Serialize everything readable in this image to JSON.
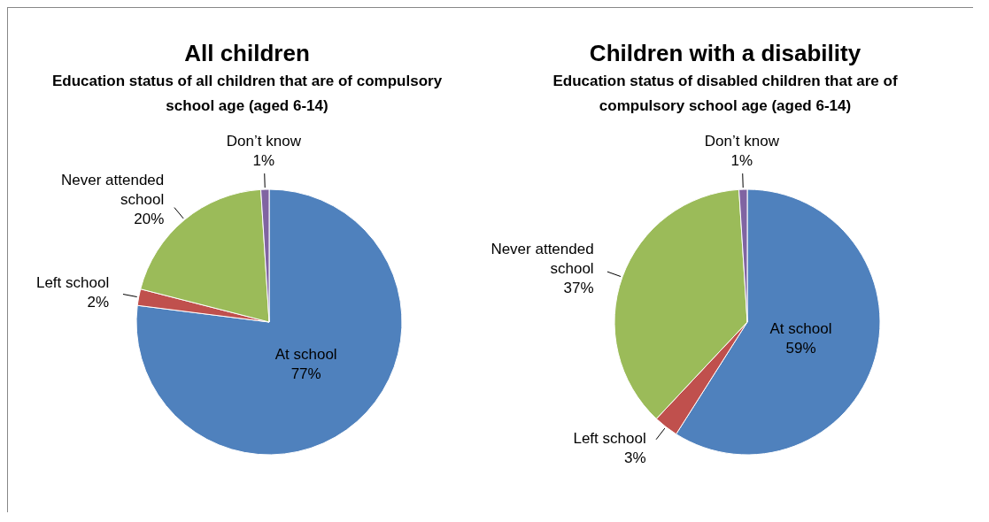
{
  "chart_data": [
    {
      "type": "pie",
      "title": "All children",
      "subtitle": "Education status of all children that are of compulsory school age (aged 6-14)",
      "categories": [
        "At school",
        "Left school",
        "Never attended school",
        "Don’t know"
      ],
      "values": [
        77,
        2,
        20,
        1
      ],
      "value_labels": [
        "77%",
        "2%",
        "20%",
        "1%"
      ],
      "colors": [
        "#4f81bd",
        "#c0504d",
        "#9bbb59",
        "#8064a2"
      ],
      "legend": false
    },
    {
      "type": "pie",
      "title": "Children with a disability",
      "subtitle": "Education status of disabled children that are of compulsory school age (aged 6-14)",
      "categories": [
        "At school",
        "Left school",
        "Never attended school",
        "Don’t know"
      ],
      "values": [
        59,
        3,
        37,
        1
      ],
      "value_labels": [
        "59%",
        "3%",
        "37%",
        "1%"
      ],
      "colors": [
        "#4f81bd",
        "#c0504d",
        "#9bbb59",
        "#8064a2"
      ],
      "legend": false
    }
  ]
}
